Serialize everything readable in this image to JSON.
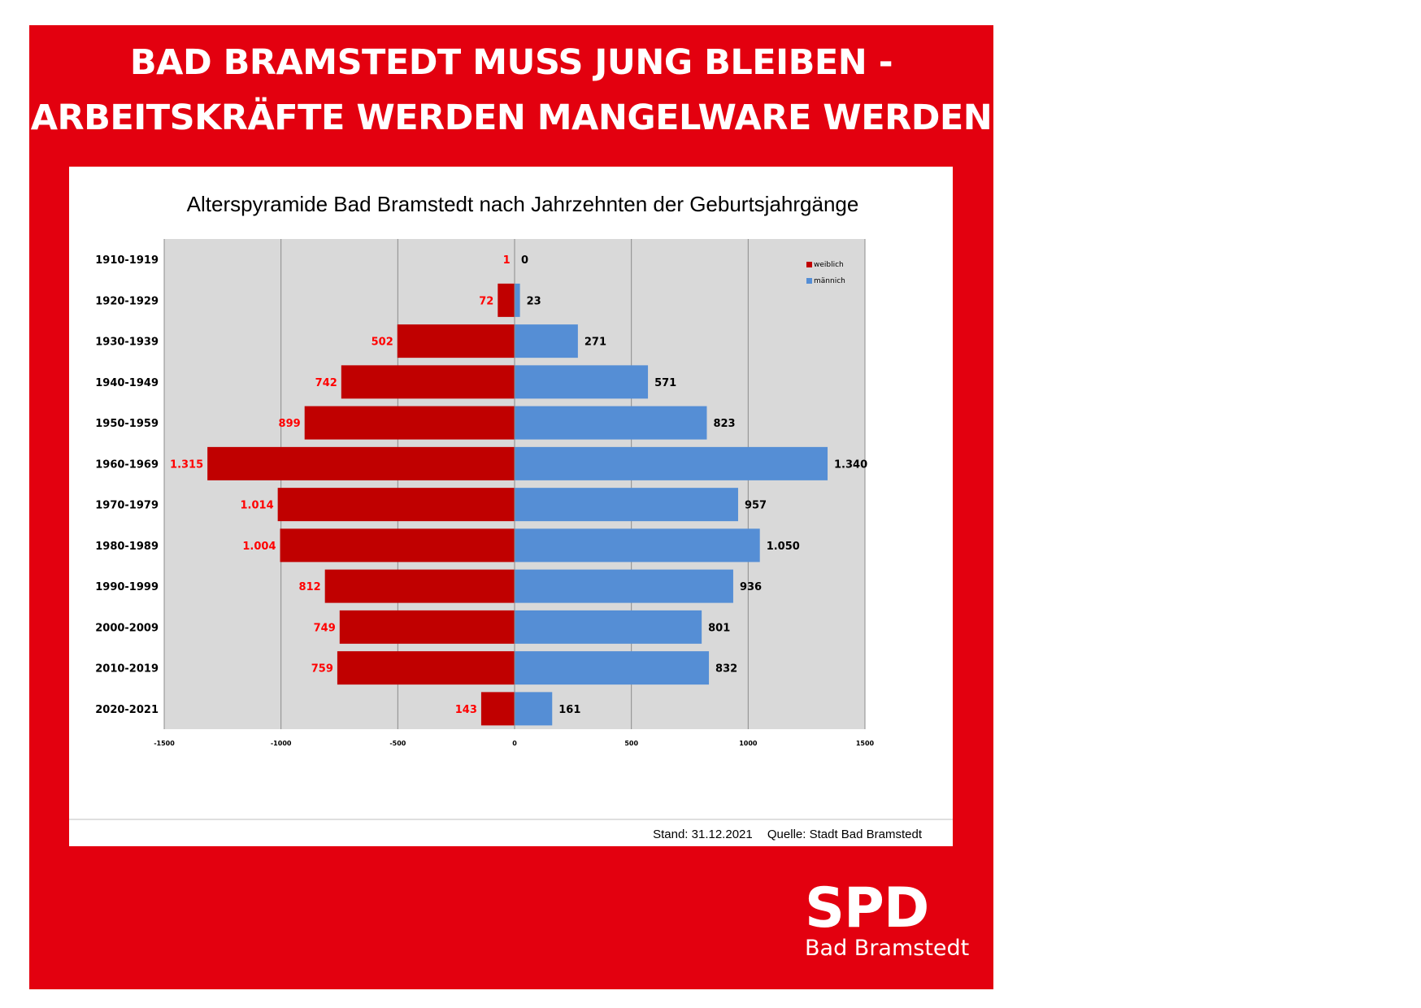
{
  "header": {
    "line1": "BAD BRAMSTEDT MUSS JUNG BLEIBEN -",
    "line2": "ARBEITSKRÄFTE WERDEN MANGELWARE WERDEN"
  },
  "footer": {
    "stand": "Stand: 31.12.2021",
    "quelle": "Quelle: Stadt Bad Bramstedt"
  },
  "logo": {
    "mark": "SPD",
    "subtitle": "Bad Bramstedt"
  },
  "colors": {
    "background": "#e3000f",
    "weiblich": "#c00000",
    "maennlich": "#558ed5",
    "weiblich_label": "#ff0000",
    "plot_bg": "#d9d9d9"
  },
  "chart_data": {
    "type": "bar",
    "orientation": "horizontal",
    "title": "Alterspyramide Bad Bramstedt nach Jahrzehnten der Geburtsjahrgänge",
    "categories": [
      "1910-1919",
      "1920-1929",
      "1930-1939",
      "1940-1949",
      "1950-1959",
      "1960-1969",
      "1970-1979",
      "1980-1989",
      "1990-1999",
      "2000-2009",
      "2010-2019",
      "2020-2021"
    ],
    "series": [
      {
        "name": "weiblich",
        "values": [
          -1,
          -72,
          -502,
          -742,
          -899,
          -1315,
          -1014,
          -1004,
          -812,
          -749,
          -759,
          -143
        ],
        "labels": [
          "1",
          "72",
          "502",
          "742",
          "899",
          "1.315",
          "1.014",
          "1.004",
          "812",
          "749",
          "759",
          "143"
        ]
      },
      {
        "name": "männich",
        "values": [
          0,
          23,
          271,
          571,
          823,
          1340,
          957,
          1050,
          936,
          801,
          832,
          161
        ],
        "labels": [
          "0",
          "23",
          "271",
          "571",
          "823",
          "1.340",
          "957",
          "1.050",
          "936",
          "801",
          "832",
          "161"
        ]
      }
    ],
    "xlim": [
      -1500,
      1500
    ],
    "xticks": [
      "-1500",
      "-1000",
      "-500",
      "0",
      "500",
      "1000",
      "1500"
    ],
    "grid": true,
    "legend_position": "top-right"
  }
}
